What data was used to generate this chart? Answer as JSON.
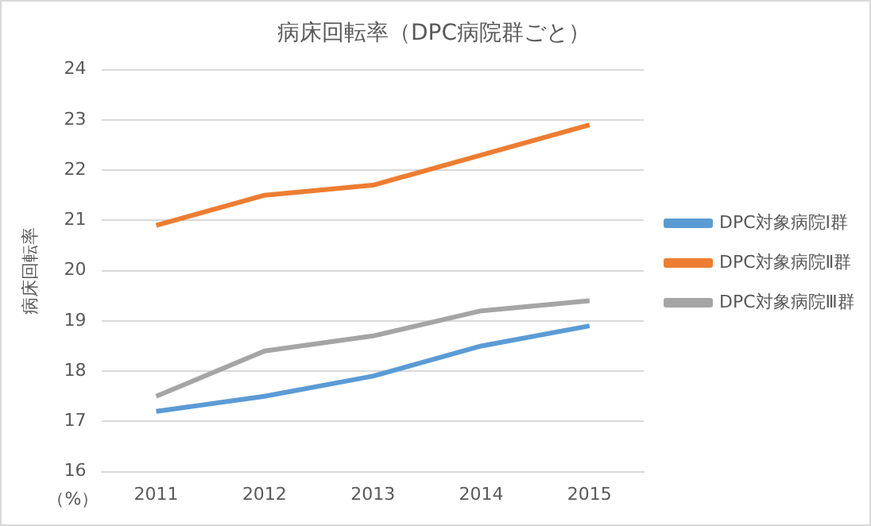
{
  "chart_data": {
    "type": "line",
    "title": "病床回転率（DPC病院群ごと）",
    "ylabel": "病床回転率",
    "annotations": [
      "（%）"
    ],
    "categories": [
      "2011",
      "2012",
      "2013",
      "2014",
      "2015"
    ],
    "series": [
      {
        "name": "DPC対象病院Ⅰ群",
        "color": "#5b9bd5",
        "values": [
          17.2,
          17.5,
          17.9,
          18.5,
          18.9
        ]
      },
      {
        "name": "DPC対象病院Ⅱ群",
        "color": "#ed7d31",
        "values": [
          20.9,
          21.5,
          21.7,
          22.3,
          22.9
        ]
      },
      {
        "name": "DPC対象病院Ⅲ群",
        "color": "#a5a5a5",
        "values": [
          17.5,
          18.4,
          18.7,
          19.2,
          19.4
        ]
      }
    ],
    "ylim": [
      16,
      24
    ],
    "yticks": [
      16,
      17,
      18,
      19,
      20,
      21,
      22,
      23,
      24
    ],
    "grid": "y",
    "legend": "right",
    "marker": "none",
    "line_style": "solid"
  }
}
